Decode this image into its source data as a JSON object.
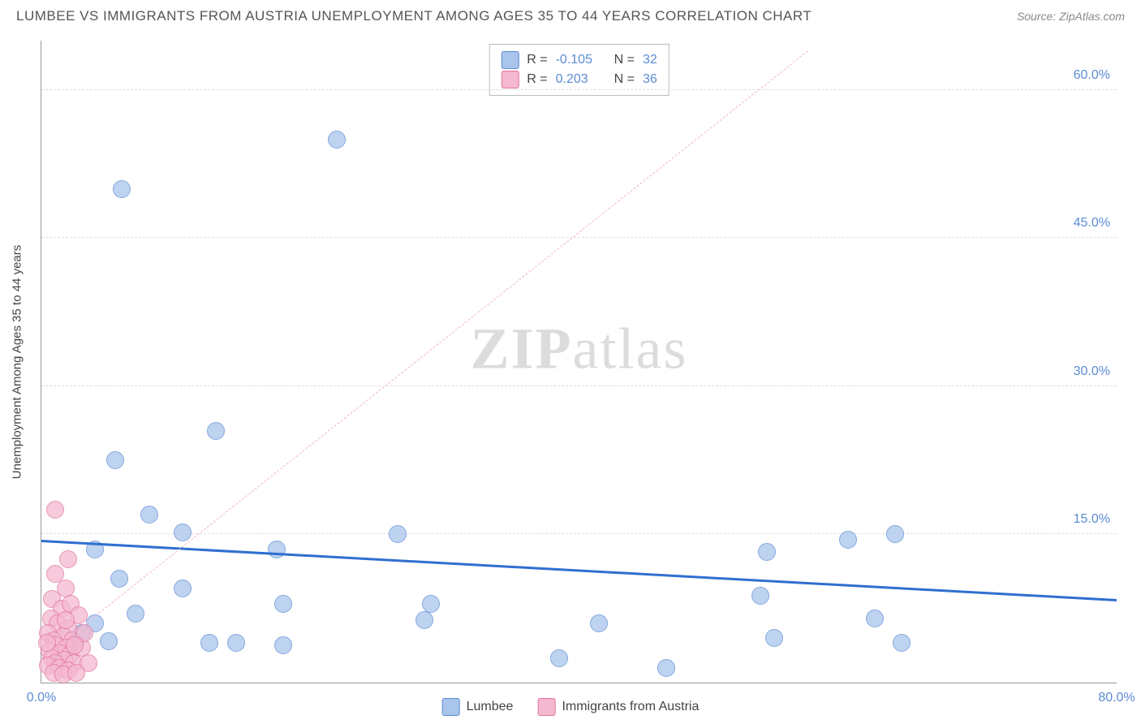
{
  "header": {
    "title": "LUMBEE VS IMMIGRANTS FROM AUSTRIA UNEMPLOYMENT AMONG AGES 35 TO 44 YEARS CORRELATION CHART",
    "source": "Source: ZipAtlas.com"
  },
  "chart": {
    "type": "scatter",
    "ylabel": "Unemployment Among Ages 35 to 44 years",
    "background_color": "#ffffff",
    "grid_color": "#dddddd",
    "axis_color": "#999999",
    "watermark_zip": "ZIP",
    "watermark_atlas": "atlas",
    "watermark_color": "#dcdcdc",
    "xlim": [
      0,
      80
    ],
    "ylim": [
      0,
      65
    ],
    "xticks": [
      {
        "pos": 0,
        "label": "0.0%"
      },
      {
        "pos": 80,
        "label": "80.0%"
      }
    ],
    "yticks": [
      {
        "pos": 15,
        "label": "15.0%"
      },
      {
        "pos": 30,
        "label": "30.0%"
      },
      {
        "pos": 45,
        "label": "45.0%"
      },
      {
        "pos": 60,
        "label": "60.0%"
      }
    ],
    "series": [
      {
        "name": "Lumbee",
        "color_fill": "#a9c5eb",
        "color_stroke": "#5b8bd4",
        "marker_radius": 11,
        "marker_opacity": 0.75,
        "trend": {
          "x1": 0,
          "y1": 14.5,
          "x2": 80,
          "y2": 8.5,
          "style": "solid",
          "width": 3,
          "color": "#2f6fd0"
        },
        "stats": {
          "R": "-0.105",
          "N": "32"
        },
        "points": [
          [
            6.0,
            50.0
          ],
          [
            22.0,
            55.0
          ],
          [
            5.5,
            22.5
          ],
          [
            13.0,
            25.5
          ],
          [
            8.0,
            17.0
          ],
          [
            10.5,
            15.2
          ],
          [
            4.0,
            13.5
          ],
          [
            5.8,
            10.5
          ],
          [
            7.0,
            7.0
          ],
          [
            10.5,
            9.5
          ],
          [
            17.5,
            13.5
          ],
          [
            18.0,
            8.0
          ],
          [
            12.5,
            4.0
          ],
          [
            14.5,
            4.0
          ],
          [
            18.0,
            3.8
          ],
          [
            28.5,
            6.3
          ],
          [
            29.0,
            8.0
          ],
          [
            26.5,
            15.0
          ],
          [
            38.5,
            2.5
          ],
          [
            41.5,
            6.0
          ],
          [
            60.0,
            14.5
          ],
          [
            54.0,
            13.2
          ],
          [
            53.5,
            8.8
          ],
          [
            64.0,
            4.0
          ],
          [
            54.5,
            4.5
          ],
          [
            63.5,
            15.0
          ],
          [
            62.0,
            6.5
          ],
          [
            46.5,
            1.5
          ],
          [
            3.0,
            5.0
          ],
          [
            4.0,
            6.0
          ],
          [
            2.5,
            4.0
          ],
          [
            5.0,
            4.2
          ]
        ]
      },
      {
        "name": "Immigrants from Austria",
        "color_fill": "#f4b8cf",
        "color_stroke": "#e2739f",
        "marker_radius": 11,
        "marker_opacity": 0.75,
        "trend": {
          "x1": 0,
          "y1": 2.5,
          "x2": 57,
          "y2": 64,
          "style": "dashed",
          "width": 1,
          "color": "#f1b5cc"
        },
        "stats": {
          "R": "0.203",
          "N": "36"
        },
        "points": [
          [
            1.0,
            17.5
          ],
          [
            2.0,
            12.5
          ],
          [
            1.0,
            11.0
          ],
          [
            1.8,
            9.5
          ],
          [
            0.8,
            8.5
          ],
          [
            1.5,
            7.5
          ],
          [
            2.2,
            8.0
          ],
          [
            0.7,
            6.5
          ],
          [
            1.2,
            6.0
          ],
          [
            2.0,
            5.5
          ],
          [
            0.5,
            5.0
          ],
          [
            1.6,
            4.7
          ],
          [
            0.9,
            4.3
          ],
          [
            2.3,
            4.3
          ],
          [
            1.1,
            3.8
          ],
          [
            1.9,
            3.5
          ],
          [
            0.6,
            3.2
          ],
          [
            1.4,
            3.0
          ],
          [
            2.1,
            2.8
          ],
          [
            0.8,
            2.5
          ],
          [
            1.7,
            2.3
          ],
          [
            1.0,
            2.0
          ],
          [
            2.4,
            2.0
          ],
          [
            0.5,
            1.7
          ],
          [
            1.3,
            1.5
          ],
          [
            2.0,
            1.2
          ],
          [
            0.9,
            1.0
          ],
          [
            1.6,
            0.8
          ],
          [
            3.0,
            3.5
          ],
          [
            3.2,
            5.0
          ],
          [
            2.8,
            6.8
          ],
          [
            3.5,
            2.0
          ],
          [
            2.6,
            1.0
          ],
          [
            0.4,
            4.0
          ],
          [
            1.8,
            6.3
          ],
          [
            2.5,
            3.8
          ]
        ]
      }
    ],
    "legend_top": {
      "label_R": "R =",
      "label_N": "N ="
    },
    "legend_bottom": {
      "items": [
        "Lumbee",
        "Immigrants from Austria"
      ]
    }
  }
}
